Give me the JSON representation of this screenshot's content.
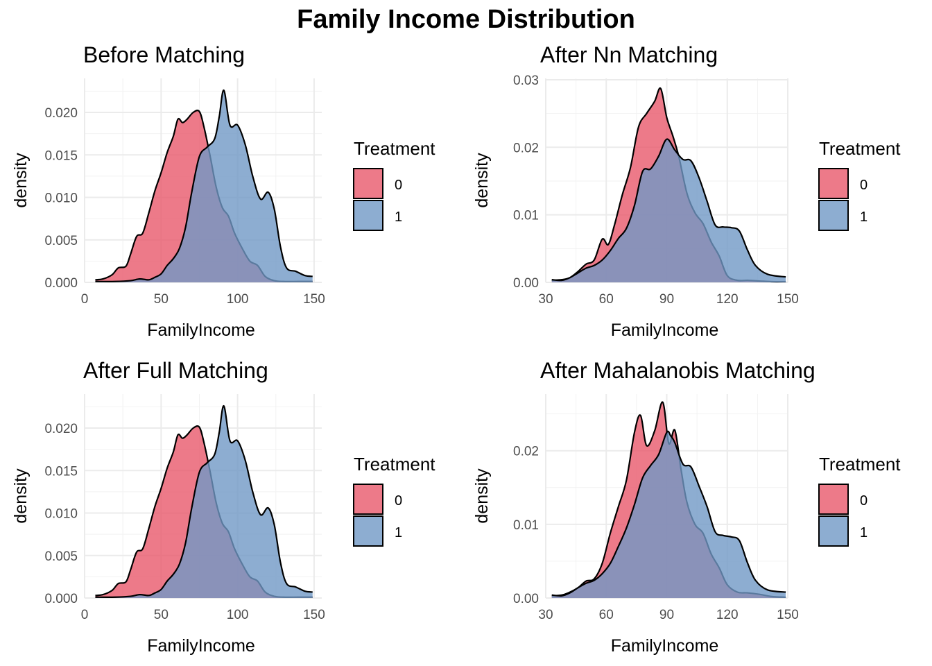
{
  "figure_title": "Family Income Distribution",
  "colors": {
    "group0": "#E8596C",
    "group1": "#7099C6",
    "outline": "#000000"
  },
  "chart_data": [
    {
      "type": "area",
      "title": "Before Matching",
      "xlabel": "FamilyIncome",
      "ylabel": "density",
      "xlim": [
        0,
        155
      ],
      "ylim": [
        0,
        0.024
      ],
      "xticks": [
        0,
        50,
        100,
        150
      ],
      "yticks": [
        0,
        0.005,
        0.01,
        0.015,
        0.02
      ],
      "ytick_labels": [
        "0.000",
        "0.005",
        "0.010",
        "0.015",
        "0.020"
      ],
      "legend": {
        "title": "Treatment",
        "entries": [
          "0",
          "1"
        ],
        "position": "right"
      },
      "series": [
        {
          "name": "0",
          "x": [
            7,
            12,
            18,
            22,
            27,
            30,
            34,
            38,
            42,
            46,
            50,
            54,
            58,
            61,
            64,
            67,
            71,
            75,
            78,
            82,
            86,
            90,
            94,
            98,
            103,
            108,
            113,
            118,
            124,
            130,
            140,
            149
          ],
          "y": [
            0.0003,
            0.0004,
            0.0009,
            0.0017,
            0.0019,
            0.0033,
            0.0054,
            0.0058,
            0.0082,
            0.0108,
            0.0129,
            0.0153,
            0.0172,
            0.0192,
            0.0188,
            0.0192,
            0.02,
            0.0201,
            0.0183,
            0.0149,
            0.0112,
            0.0088,
            0.0078,
            0.0058,
            0.004,
            0.0025,
            0.002,
            0.0007,
            0.0002,
            0.0001,
            0.0001,
            0.0001
          ]
        },
        {
          "name": "1",
          "x": [
            7,
            20,
            30,
            36,
            42,
            46,
            50,
            54,
            58,
            62,
            66,
            70,
            75,
            80,
            85,
            88,
            91,
            95,
            100,
            105,
            110,
            115,
            120,
            124,
            128,
            132,
            138,
            144,
            149
          ],
          "y": [
            0.0001,
            0.0001,
            0.0002,
            0.0004,
            0.0003,
            0.0006,
            0.001,
            0.002,
            0.0028,
            0.004,
            0.0065,
            0.0106,
            0.0148,
            0.0159,
            0.0169,
            0.0195,
            0.0226,
            0.0185,
            0.0185,
            0.0162,
            0.0124,
            0.0098,
            0.0106,
            0.0086,
            0.0042,
            0.0017,
            0.0013,
            0.0008,
            0.0007
          ]
        }
      ]
    },
    {
      "type": "area",
      "title": "After Nn Matching",
      "xlabel": "FamilyIncome",
      "ylabel": "density",
      "xlim": [
        30,
        150
      ],
      "ylim": [
        0,
        0.0302
      ],
      "xticks": [
        30,
        60,
        90,
        120,
        150
      ],
      "yticks": [
        0,
        0.01,
        0.02,
        0.03
      ],
      "ytick_labels": [
        "0.00",
        "0.01",
        "0.02",
        "0.03"
      ],
      "legend": {
        "title": "Treatment",
        "entries": [
          "0",
          "1"
        ],
        "position": "right"
      },
      "series": [
        {
          "name": "0",
          "x": [
            33,
            38,
            42,
            46,
            50,
            54,
            58,
            61,
            64,
            68,
            72,
            76,
            80,
            84,
            87,
            90,
            93,
            96,
            100,
            104,
            108,
            112,
            116,
            120,
            125,
            130,
            136,
            142,
            149
          ],
          "y": [
            0.0003,
            0.0004,
            0.0007,
            0.0016,
            0.0027,
            0.0033,
            0.0064,
            0.0056,
            0.0084,
            0.013,
            0.017,
            0.023,
            0.025,
            0.0268,
            0.0287,
            0.0244,
            0.0217,
            0.0186,
            0.0132,
            0.0103,
            0.0087,
            0.006,
            0.0039,
            0.001,
            0.0003,
            0.0003,
            0.0002,
            0.0001,
            0.0001
          ]
        },
        {
          "name": "1",
          "x": [
            33,
            38,
            42,
            46,
            50,
            54,
            58,
            62,
            66,
            70,
            74,
            78,
            82,
            86,
            90,
            94,
            98,
            102,
            106,
            110,
            114,
            118,
            122,
            126,
            130,
            134,
            140,
            149
          ],
          "y": [
            0.0004,
            0.0003,
            0.0007,
            0.0014,
            0.0021,
            0.0025,
            0.0033,
            0.0047,
            0.0065,
            0.008,
            0.0114,
            0.0164,
            0.0168,
            0.0187,
            0.0212,
            0.0196,
            0.0182,
            0.018,
            0.0155,
            0.012,
            0.0085,
            0.0082,
            0.0081,
            0.0076,
            0.0048,
            0.0025,
            0.0012,
            0.0008
          ]
        }
      ]
    },
    {
      "type": "area",
      "title": "After Full Matching",
      "xlabel": "FamilyIncome",
      "ylabel": "density",
      "xlim": [
        0,
        155
      ],
      "ylim": [
        0,
        0.024
      ],
      "xticks": [
        0,
        50,
        100,
        150
      ],
      "yticks": [
        0,
        0.005,
        0.01,
        0.015,
        0.02
      ],
      "ytick_labels": [
        "0.000",
        "0.005",
        "0.010",
        "0.015",
        "0.020"
      ],
      "legend": {
        "title": "Treatment",
        "entries": [
          "0",
          "1"
        ],
        "position": "right"
      },
      "series": [
        {
          "name": "0",
          "x": [
            7,
            12,
            18,
            22,
            27,
            30,
            34,
            38,
            42,
            46,
            50,
            54,
            58,
            61,
            64,
            67,
            71,
            75,
            78,
            82,
            86,
            90,
            94,
            98,
            103,
            108,
            113,
            118,
            124,
            130,
            140,
            149
          ],
          "y": [
            0.0003,
            0.0004,
            0.0009,
            0.0017,
            0.0019,
            0.0033,
            0.0054,
            0.0058,
            0.0082,
            0.0108,
            0.0129,
            0.0153,
            0.0172,
            0.0192,
            0.0188,
            0.0192,
            0.02,
            0.0201,
            0.0183,
            0.0149,
            0.0112,
            0.0088,
            0.0078,
            0.0058,
            0.004,
            0.0025,
            0.002,
            0.0007,
            0.0002,
            0.0001,
            0.0001,
            0.0001
          ]
        },
        {
          "name": "1",
          "x": [
            7,
            20,
            30,
            36,
            42,
            46,
            50,
            54,
            58,
            62,
            66,
            70,
            75,
            80,
            85,
            88,
            91,
            95,
            100,
            105,
            110,
            115,
            120,
            124,
            128,
            132,
            138,
            144,
            149
          ],
          "y": [
            0.0001,
            0.0001,
            0.0002,
            0.0004,
            0.0003,
            0.0006,
            0.001,
            0.002,
            0.0028,
            0.004,
            0.0065,
            0.0106,
            0.0148,
            0.0159,
            0.0169,
            0.0195,
            0.0226,
            0.0185,
            0.0185,
            0.0162,
            0.0124,
            0.0098,
            0.0106,
            0.0086,
            0.0042,
            0.0017,
            0.0013,
            0.0008,
            0.0007
          ]
        }
      ]
    },
    {
      "type": "area",
      "title": "After Mahalanobis Matching",
      "xlabel": "FamilyIncome",
      "ylabel": "density",
      "xlim": [
        30,
        150
      ],
      "ylim": [
        0,
        0.0277
      ],
      "xticks": [
        30,
        60,
        90,
        120,
        150
      ],
      "yticks": [
        0,
        0.01,
        0.02
      ],
      "ytick_labels": [
        "0.00",
        "0.01",
        "0.02"
      ],
      "legend": {
        "title": "Treatment",
        "entries": [
          "0",
          "1"
        ],
        "position": "right"
      },
      "series": [
        {
          "name": "0",
          "x": [
            33,
            38,
            42,
            46,
            50,
            54,
            58,
            62,
            66,
            70,
            74,
            77,
            80,
            84,
            88,
            91,
            94,
            97,
            100,
            104,
            108,
            112,
            116,
            120,
            125,
            130,
            136,
            142,
            149
          ],
          "y": [
            0.0003,
            0.0004,
            0.0008,
            0.0014,
            0.0023,
            0.0026,
            0.0047,
            0.0088,
            0.0124,
            0.016,
            0.0225,
            0.0248,
            0.0207,
            0.0227,
            0.0266,
            0.021,
            0.0228,
            0.0176,
            0.013,
            0.01,
            0.0088,
            0.006,
            0.0041,
            0.0018,
            0.0008,
            0.0007,
            0.0005,
            0.0002,
            0.0001
          ]
        },
        {
          "name": "1",
          "x": [
            33,
            38,
            42,
            46,
            50,
            54,
            58,
            62,
            66,
            70,
            74,
            78,
            82,
            86,
            90,
            92,
            94,
            98,
            102,
            106,
            110,
            114,
            118,
            122,
            126,
            130,
            134,
            140,
            149
          ],
          "y": [
            0.0004,
            0.0003,
            0.0007,
            0.0014,
            0.002,
            0.0024,
            0.0033,
            0.0047,
            0.007,
            0.0095,
            0.0127,
            0.0163,
            0.018,
            0.0195,
            0.0225,
            0.022,
            0.0211,
            0.0182,
            0.0178,
            0.0152,
            0.0124,
            0.009,
            0.0085,
            0.0083,
            0.0078,
            0.0048,
            0.0024,
            0.0011,
            0.0008
          ]
        }
      ]
    }
  ]
}
